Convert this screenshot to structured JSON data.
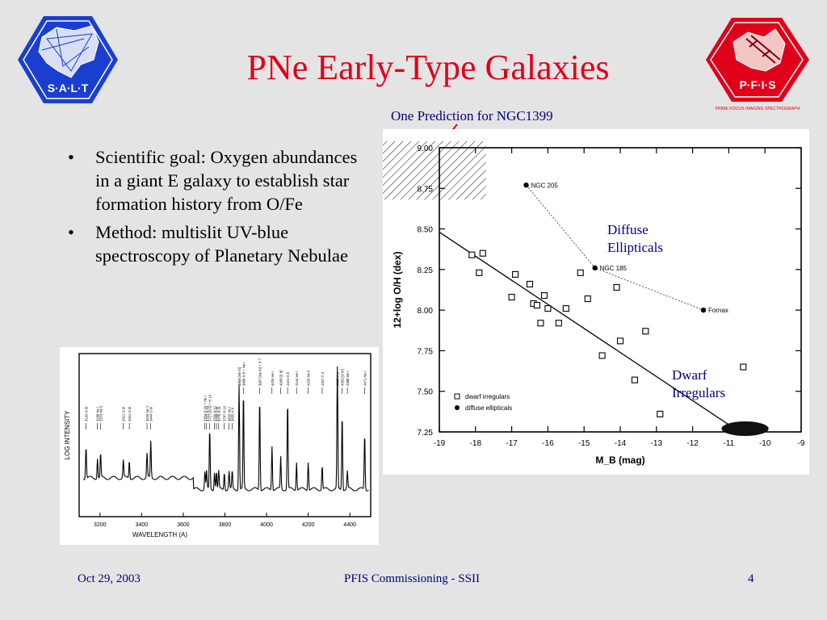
{
  "slide": {
    "title": "PNe Early-Type Galaxies",
    "bullets": [
      "Scientific goal: Oxygen abundances in a giant E galaxy to establish star formation history from O/Fe",
      "Method: multislit UV-blue spectroscopy of Planetary Nebulae"
    ],
    "bullet_glyph": "•",
    "figure_caption": "One Prediction for NGC1399",
    "annotations": {
      "diffuse": "Diffuse Ellipticals",
      "dwarf": "Dwarf Irregulars"
    },
    "footer": {
      "date": "Oct 29, 2003",
      "center": "PFIS Commissioning - SSII",
      "page": "4"
    },
    "logos": {
      "left": {
        "text": "S·A·L·T",
        "color": "#1a3fd0"
      },
      "right": {
        "text": "P·F·I·S",
        "tagline": "PRIME FOCUS IMAGING SPECTROGRAPH",
        "color": "#e0001a"
      }
    },
    "colors": {
      "title": "#e0001a",
      "accent_text": "#000080",
      "pointer": "#e0001a",
      "background": "#e4e4e4"
    }
  },
  "chart_data": [
    {
      "type": "scatter",
      "title": "",
      "xlabel": "M_B (mag)",
      "ylabel": "12+log O/H (dex)",
      "xlim": [
        -19,
        -9
      ],
      "ylim": [
        7.25,
        9.0
      ],
      "x_ticks": [
        "-19",
        "-18",
        "-17",
        "-16",
        "-15",
        "-14",
        "-13",
        "-12",
        "-11",
        "-10",
        "-9"
      ],
      "y_ticks": [
        "7.25",
        "7.50",
        "7.75",
        "8.00",
        "8.25",
        "8.50",
        "8.75",
        "9.00"
      ],
      "legend": {
        "placement": "bottom-left",
        "entries": [
          "dwarf irregulars",
          "diffuse ellipticals"
        ]
      },
      "series": [
        {
          "name": "dwarf irregulars",
          "marker": "open-square",
          "points": [
            [
              -18.1,
              8.34
            ],
            [
              -17.9,
              8.23
            ],
            [
              -17.8,
              8.35
            ],
            [
              -17.0,
              8.08
            ],
            [
              -16.9,
              8.22
            ],
            [
              -16.5,
              8.16
            ],
            [
              -16.4,
              8.04
            ],
            [
              -16.3,
              8.03
            ],
            [
              -16.2,
              7.92
            ],
            [
              -16.1,
              8.09
            ],
            [
              -16.0,
              8.01
            ],
            [
              -15.7,
              7.92
            ],
            [
              -15.5,
              8.01
            ],
            [
              -15.1,
              8.23
            ],
            [
              -14.9,
              8.07
            ],
            [
              -14.5,
              7.72
            ],
            [
              -14.1,
              8.14
            ],
            [
              -14.0,
              7.81
            ],
            [
              -13.6,
              7.57
            ],
            [
              -13.3,
              7.87
            ],
            [
              -12.9,
              7.36
            ],
            [
              -10.6,
              7.65
            ]
          ]
        },
        {
          "name": "diffuse ellipticals",
          "marker": "filled-circle",
          "connected": true,
          "points": [
            [
              -16.6,
              8.77
            ],
            [
              -14.7,
              8.26
            ],
            [
              -11.7,
              8.0
            ]
          ],
          "labels": [
            "NGC 205",
            "NGC 185",
            "Fornax"
          ]
        }
      ],
      "fit_line": [
        [
          -19.0,
          8.48
        ],
        [
          -10.7,
          7.25
        ]
      ],
      "hatched_region": {
        "x": [
          -19,
          -17.8
        ],
        "y": [
          8.7,
          9.0
        ]
      },
      "dwarf_blob": {
        "x": [
          -11.2,
          -9.9
        ],
        "y": [
          7.25,
          7.32
        ]
      }
    },
    {
      "type": "line",
      "title": "",
      "xlabel": "WAVELENGTH (A)",
      "ylabel": "LOG INTENSITY",
      "xlim": [
        3100,
        4500
      ],
      "x_ticks": [
        "3200",
        "3400",
        "3600",
        "3800",
        "4000",
        "4200",
        "4400"
      ],
      "line_ids": [
        "3133 O III",
        "3188 He I",
        "3203 He II",
        "3312 O III",
        "3341 O III",
        "3426 Ne V",
        "3444 O III",
        "3704 H 16 + He I",
        "3712 H 15",
        "3727 [O II] + H 14",
        "3750 H 12",
        "3759 O III",
        "3770 H 11",
        "3797 H 10",
        "3820 He I",
        "3835 H 9",
        "3868 [Ne III]",
        "3889 H 8 + He I",
        "3967 [Ne III] + H 7",
        "4026 He I",
        "4068 [S II]",
        "4101 H δ",
        "4144 He I",
        "4200 He II",
        "4267 C II",
        "4340 H γ",
        "4363 [O III]",
        "4388 He I",
        "4471 He I"
      ]
    }
  ]
}
